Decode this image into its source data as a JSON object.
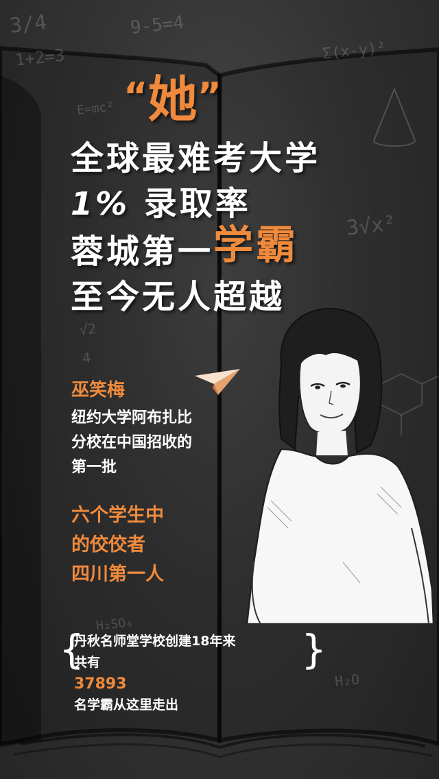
{
  "title": {
    "open_quote": "“",
    "word": "她",
    "close_quote": "”"
  },
  "headline": {
    "line1": "全球最难考大学",
    "line2_pct": "1%",
    "line2_rest": "录取率",
    "line3_start": "蓉城第一",
    "line3_highlight": "学霸",
    "line4": "至今无人超越"
  },
  "profile": {
    "name": "巫笑梅",
    "desc": [
      "纽约大学阿布扎比",
      "分校在中国招收的",
      "第一批"
    ],
    "highlight": [
      "六个学生中",
      "的佼佼者",
      "四川第一人"
    ]
  },
  "footer": {
    "line1": "丹秋名师堂学校创建18年来",
    "line2_prefix": "共有",
    "count": "37893",
    "line2_suffix": "名学霸从这里走出"
  },
  "scribbles": {
    "a": "3/4",
    "b": "9-5=4",
    "c": "1+2=3",
    "d": "Σ(x-y)²",
    "e": "E=mc²",
    "f": "3√x²",
    "g": "√2",
    "h": "4",
    "i": "H₂O",
    "j": "H₂SO₄"
  },
  "colors": {
    "accent": "#f08a3c",
    "text": "#ffffff",
    "board": "#353535"
  }
}
